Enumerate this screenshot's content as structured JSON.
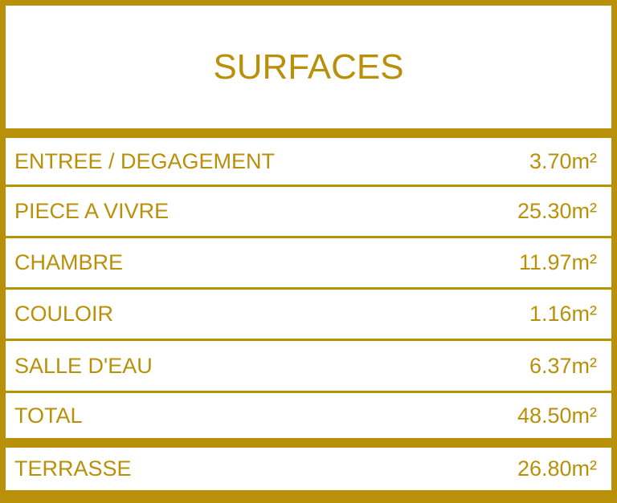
{
  "title": "SURFACES",
  "rooms": [
    {
      "label": "ENTREE / DEGAGEMENT",
      "value": "3.70m²"
    },
    {
      "label": "PIECE A VIVRE",
      "value": "25.30m²"
    },
    {
      "label": "CHAMBRE",
      "value": "11.97m²"
    },
    {
      "label": "COULOIR",
      "value": "1.16m²"
    },
    {
      "label": "SALLE D'EAU",
      "value": "6.37m²"
    },
    {
      "label": "TOTAL",
      "value": "48.50m²"
    }
  ],
  "terrace": {
    "label": "TERRASSE",
    "value": "26.80m²"
  },
  "colors": {
    "accent": "#b8900a",
    "background": "#ffffff"
  }
}
